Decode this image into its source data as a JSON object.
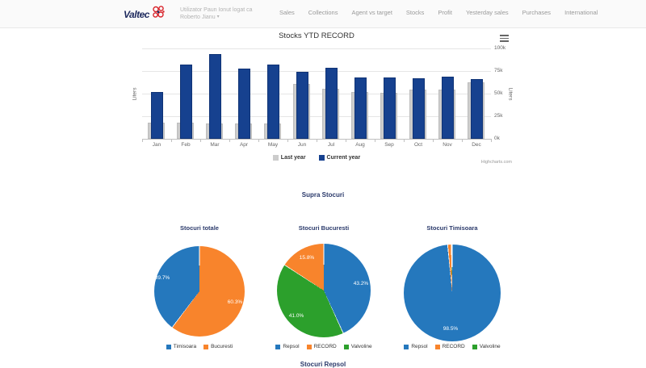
{
  "header": {
    "logo": "Valtec",
    "user_line1": "Utilizator Paun Ionut logat ca",
    "user_line2": "Roberto Jianu",
    "user_caret": "▾",
    "nav": [
      "Sales",
      "Collections",
      "Agent vs target",
      "Stocks",
      "Profit",
      "Yesterday sales",
      "Purchases",
      "International"
    ]
  },
  "section_title": "Supra Stocuri",
  "next_section_title": "Stocuri Repsol",
  "chart_data": [
    {
      "type": "bar",
      "title": "Stocks YTD RECORD",
      "categories": [
        "Jan",
        "Feb",
        "Mar",
        "Apr",
        "May",
        "Jun",
        "Jul",
        "Aug",
        "Sep",
        "Oct",
        "Nov",
        "Dec"
      ],
      "series": [
        {
          "name": "Last year",
          "color": "#cccccc",
          "values": [
            16,
            16,
            15,
            15,
            15,
            59,
            54,
            50,
            49,
            53,
            53,
            61
          ]
        },
        {
          "name": "Current year",
          "color": "#16418f",
          "values": [
            50,
            80,
            92,
            76,
            80,
            72,
            77,
            66,
            66,
            65,
            67,
            64
          ]
        }
      ],
      "unit": "thousands of liters",
      "ylabel": "Liters",
      "ylabel_right": "Liters",
      "ylim": [
        0,
        100
      ],
      "ytick_labels": [
        "0k",
        "25k",
        "50k",
        "75k",
        "100k"
      ],
      "grid": true,
      "legend_position": "bottom",
      "credits": "Highcharts.com"
    },
    {
      "type": "pie",
      "title": "Stocuri totale",
      "slices": [
        {
          "name": "Timisoara",
          "value": 39.7,
          "label": "39.7%",
          "color": "#2578bd"
        },
        {
          "name": "Bucuresti",
          "value": 60.3,
          "label": "60.3%",
          "color": "#f8842c"
        }
      ],
      "draw_order": [
        1,
        0
      ],
      "legend_position": "bottom"
    },
    {
      "type": "pie",
      "title": "Stocuri Bucuresti",
      "slices": [
        {
          "name": "Repsol",
          "value": 43.2,
          "label": "43.2%",
          "color": "#2578bd"
        },
        {
          "name": "RECORD",
          "value": 15.8,
          "label": "15.8%",
          "color": "#f8842c"
        },
        {
          "name": "Valvoline",
          "value": 41.0,
          "label": "41.0%",
          "color": "#2ca02c"
        }
      ],
      "draw_order": [
        0,
        2,
        1
      ],
      "legend_position": "bottom"
    },
    {
      "type": "pie",
      "title": "Stocuri Timisoara",
      "slices": [
        {
          "name": "Repsol",
          "value": 98.5,
          "label": "98.5%",
          "color": "#2578bd"
        },
        {
          "name": "RECORD",
          "value": 1.2,
          "label": "",
          "color": "#f8842c"
        },
        {
          "name": "Valvoline",
          "value": 0.3,
          "label": "",
          "color": "#2ca02c"
        }
      ],
      "draw_order": [
        0,
        1,
        2
      ],
      "legend_position": "bottom"
    }
  ]
}
